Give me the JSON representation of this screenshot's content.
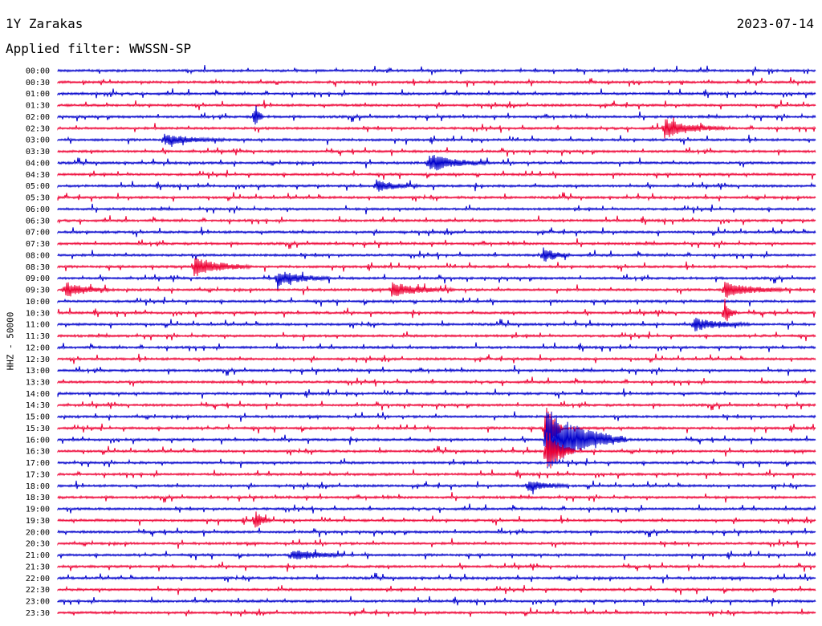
{
  "header": {
    "station": "1Y Zarakas",
    "date": "2023-07-14",
    "filter": "Applied filter: WWSSN-SP"
  },
  "chart_data": {
    "type": "line",
    "title": "1Y Zarakas",
    "ylabel": "HHZ - 50000",
    "tick_labels": [
      "00:00",
      "00:30",
      "01:00",
      "01:30",
      "02:00",
      "02:30",
      "03:00",
      "03:30",
      "04:00",
      "04:30",
      "05:00",
      "05:30",
      "06:00",
      "06:30",
      "07:00",
      "07:30",
      "08:00",
      "08:30",
      "09:00",
      "09:30",
      "10:00",
      "10:30",
      "11:00",
      "11:30",
      "12:00",
      "12:30",
      "13:00",
      "13:30",
      "14:00",
      "14:30",
      "15:00",
      "15:30",
      "16:00",
      "16:30",
      "17:00",
      "17:30",
      "18:00",
      "18:30",
      "19:00",
      "19:30",
      "20:00",
      "20:30",
      "21:00",
      "21:30",
      "22:00",
      "22:30",
      "23:00",
      "23:30"
    ],
    "colors": [
      "#0000cc",
      "#ee0033"
    ],
    "events": [
      {
        "row": 4,
        "pos": 0.26,
        "amp": 20,
        "dur": 4
      },
      {
        "row": 5,
        "pos": 0.8,
        "amp": 12,
        "dur": 30
      },
      {
        "row": 6,
        "pos": 0.14,
        "amp": 7,
        "dur": 30
      },
      {
        "row": 8,
        "pos": 0.49,
        "amp": 11,
        "dur": 30
      },
      {
        "row": 10,
        "pos": 0.42,
        "amp": 7,
        "dur": 22
      },
      {
        "row": 16,
        "pos": 0.64,
        "amp": 10,
        "dur": 14
      },
      {
        "row": 17,
        "pos": 0.18,
        "amp": 12,
        "dur": 28
      },
      {
        "row": 18,
        "pos": 0.29,
        "amp": 10,
        "dur": 26
      },
      {
        "row": 19,
        "pos": 0.01,
        "amp": 10,
        "dur": 22
      },
      {
        "row": 19,
        "pos": 0.44,
        "amp": 9,
        "dur": 32
      },
      {
        "row": 19,
        "pos": 0.88,
        "amp": 10,
        "dur": 30
      },
      {
        "row": 21,
        "pos": 0.88,
        "amp": 18,
        "dur": 6
      },
      {
        "row": 22,
        "pos": 0.84,
        "amp": 8,
        "dur": 28
      },
      {
        "row": 31,
        "pos": 0.645,
        "amp": 46,
        "dur": 8
      },
      {
        "row": 32,
        "pos": 0.645,
        "amp": 40,
        "dur": 40
      },
      {
        "row": 33,
        "pos": 0.645,
        "amp": 30,
        "dur": 14
      },
      {
        "row": 36,
        "pos": 0.62,
        "amp": 8,
        "dur": 20
      },
      {
        "row": 39,
        "pos": 0.26,
        "amp": 12,
        "dur": 8
      },
      {
        "row": 42,
        "pos": 0.31,
        "amp": 8,
        "dur": 26
      }
    ]
  }
}
